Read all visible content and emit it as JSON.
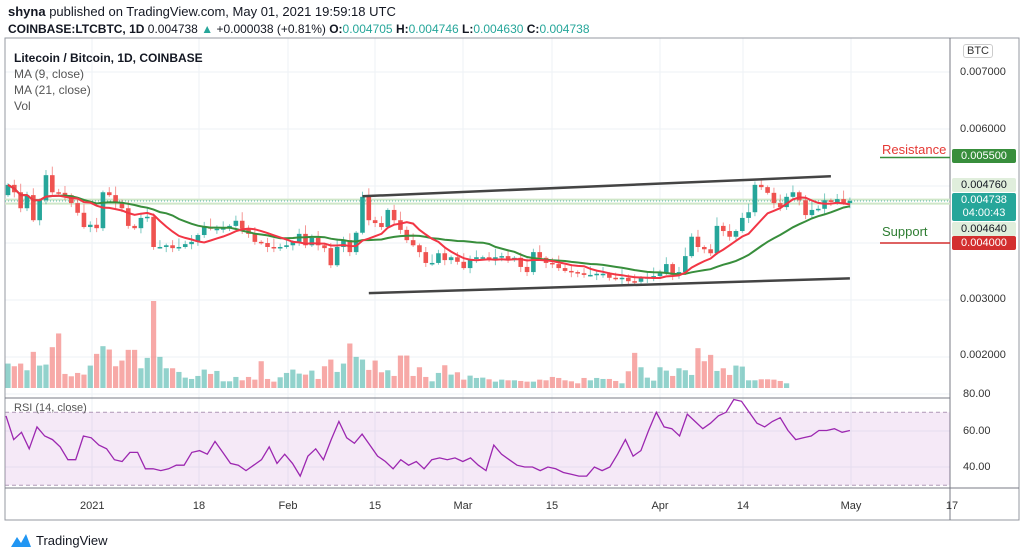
{
  "header": {
    "author": "shyna",
    "published": "published on TradingView.com, May 01, 2021 19:59:18 UTC",
    "symbol": "COINBASE:LTCBTC, 1D",
    "last": "0.004738",
    "change": "+0.000038 (+0.81%)",
    "o_label": "O:",
    "o": "0.004705",
    "h_label": "H:",
    "h": "0.004746",
    "l_label": "L:",
    "l": "0.004630",
    "c_label": "C:",
    "c": "0.004738"
  },
  "legend": {
    "title": "Litecoin / Bitcoin, 1D, COINBASE",
    "ma9": "MA (9, close)",
    "ma21": "MA (21, close)",
    "vol": "Vol"
  },
  "rsi_label": "RSI (14, close)",
  "currency_badge": "BTC",
  "price_axis": [
    "0.007000",
    "0.006000",
    "0.003000",
    "0.002000"
  ],
  "price_tags": {
    "resistance_value": "0.005500",
    "ma_high": "0.004760",
    "last": "0.004738",
    "countdown": "04:00:43",
    "ma_low": "0.004640",
    "support_value": "0.004000"
  },
  "annotations": {
    "resistance": "Resistance",
    "support": "Support"
  },
  "rsi_axis": [
    "80.00",
    "60.00",
    "40.00"
  ],
  "time_axis": [
    "2021",
    "18",
    "Feb",
    "15",
    "Mar",
    "15",
    "Apr",
    "14",
    "May",
    "17"
  ],
  "footer": {
    "brand": "TradingView"
  },
  "colors": {
    "up": "#26a69a",
    "down": "#ef5350",
    "ma9": "#f23645",
    "ma21": "#388e3c",
    "rsi": "#9c27b0",
    "resistance": "#388e3c",
    "support": "#d32f2f"
  },
  "chart_data": {
    "type": "candlestick",
    "price_range": [
      0.0015,
      0.0073
    ],
    "resistance": 0.0055,
    "support": 0.004,
    "first_open": 0.00484,
    "closes": [
      0.00502,
      0.00489,
      0.00461,
      0.00484,
      0.0044,
      0.00475,
      0.00519,
      0.00489,
      0.00488,
      0.00484,
      0.0047,
      0.00453,
      0.00428,
      0.00432,
      0.00426,
      0.00489,
      0.00484,
      0.0047,
      0.00461,
      0.0043,
      0.00426,
      0.00444,
      0.00446,
      0.00393,
      0.00393,
      0.00396,
      0.00391,
      0.00393,
      0.00398,
      0.00402,
      0.00414,
      0.00428,
      0.00425,
      0.00425,
      0.00426,
      0.0043,
      0.00439,
      0.00425,
      0.00416,
      0.00402,
      0.004,
      0.00393,
      0.00391,
      0.00393,
      0.00396,
      0.00402,
      0.00416,
      0.00396,
      0.00409,
      0.00396,
      0.00391,
      0.00361,
      0.00393,
      0.00405,
      0.00384,
      0.00418,
      0.00481,
      0.0044,
      0.00435,
      0.00428,
      0.00458,
      0.0044,
      0.00423,
      0.00405,
      0.00396,
      0.00384,
      0.00365,
      0.00365,
      0.00382,
      0.0037,
      0.00375,
      0.00367,
      0.00356,
      0.00372,
      0.00375,
      0.00375,
      0.0037,
      0.00375,
      0.00377,
      0.0037,
      0.00374,
      0.00358,
      0.00349,
      0.00384,
      0.00374,
      0.00365,
      0.00363,
      0.00356,
      0.00351,
      0.00349,
      0.00347,
      0.00344,
      0.00344,
      0.00346,
      0.00346,
      0.00339,
      0.00337,
      0.00339,
      0.00333,
      0.00332,
      0.00339,
      0.0034,
      0.00342,
      0.00347,
      0.00363,
      0.00344,
      0.00349,
      0.00377,
      0.00411,
      0.00393,
      0.00389,
      0.00382,
      0.0043,
      0.00421,
      0.00411,
      0.00421,
      0.00444,
      0.00454,
      0.00502,
      0.00498,
      0.00488,
      0.0047,
      0.00463,
      0.00481,
      0.00489,
      0.00475,
      0.00449,
      0.00458,
      0.0046,
      0.00475,
      0.00472,
      0.00477,
      0.0047,
      0.004738
    ],
    "volume_relative": [
      73,
      65,
      73,
      53,
      108,
      67,
      70,
      122,
      163,
      42,
      35,
      45,
      40,
      67,
      102,
      125,
      115,
      65,
      82,
      114,
      114,
      59,
      90,
      260,
      93,
      59,
      59,
      48,
      31,
      27,
      36,
      55,
      42,
      51,
      20,
      20,
      33,
      23,
      33,
      25,
      80,
      27,
      19,
      32,
      45,
      55,
      43,
      40,
      52,
      27,
      65,
      85,
      48,
      73,
      133,
      93,
      85,
      54,
      82,
      47,
      53,
      36,
      97,
      97,
      36,
      62,
      33,
      20,
      45,
      68,
      40,
      47,
      25,
      37,
      30,
      31,
      26,
      19,
      25,
      23,
      23,
      21,
      19,
      19,
      25,
      23,
      33,
      30,
      23,
      20,
      14,
      30,
      23,
      30,
      27,
      27,
      21,
      14,
      50,
      105,
      62,
      31,
      22,
      62,
      52,
      36,
      59,
      53,
      39,
      119,
      80,
      99,
      51,
      59,
      39,
      67,
      64,
      23,
      23,
      26,
      26,
      25,
      21,
      14
    ],
    "rsi": {
      "range": [
        25,
        85
      ],
      "bands": [
        30,
        70
      ],
      "values": [
        68,
        55,
        59,
        50,
        62,
        57,
        55,
        51,
        44,
        44,
        57,
        56,
        52,
        50,
        44,
        43,
        48,
        48,
        39,
        39,
        38,
        39,
        41,
        41,
        48,
        49,
        47,
        54,
        48,
        42,
        41,
        38,
        41,
        44,
        51,
        42,
        47,
        42,
        35,
        46,
        50,
        44,
        55,
        65,
        56,
        53,
        58,
        52,
        46,
        43,
        39,
        44,
        41,
        43,
        39,
        44,
        45,
        44,
        45,
        43,
        45,
        41,
        38,
        52,
        47,
        44,
        41,
        40,
        40,
        38,
        40,
        39,
        37,
        36,
        35,
        35,
        40,
        38,
        40,
        47,
        55,
        46,
        49,
        60,
        70,
        62,
        61,
        57,
        69,
        65,
        61,
        64,
        68,
        70,
        77,
        76,
        70,
        64,
        62,
        65,
        67,
        60,
        55,
        56,
        57,
        60,
        60,
        61,
        59,
        60
      ]
    },
    "trendlines": [
      {
        "from": [
          "2021-02-12",
          0.00482
        ],
        "to": [
          "2021-04-27",
          0.00517
        ]
      },
      {
        "from": [
          "2021-02-13",
          0.00312
        ],
        "to": [
          "2021-04-30",
          0.00338
        ]
      }
    ]
  }
}
